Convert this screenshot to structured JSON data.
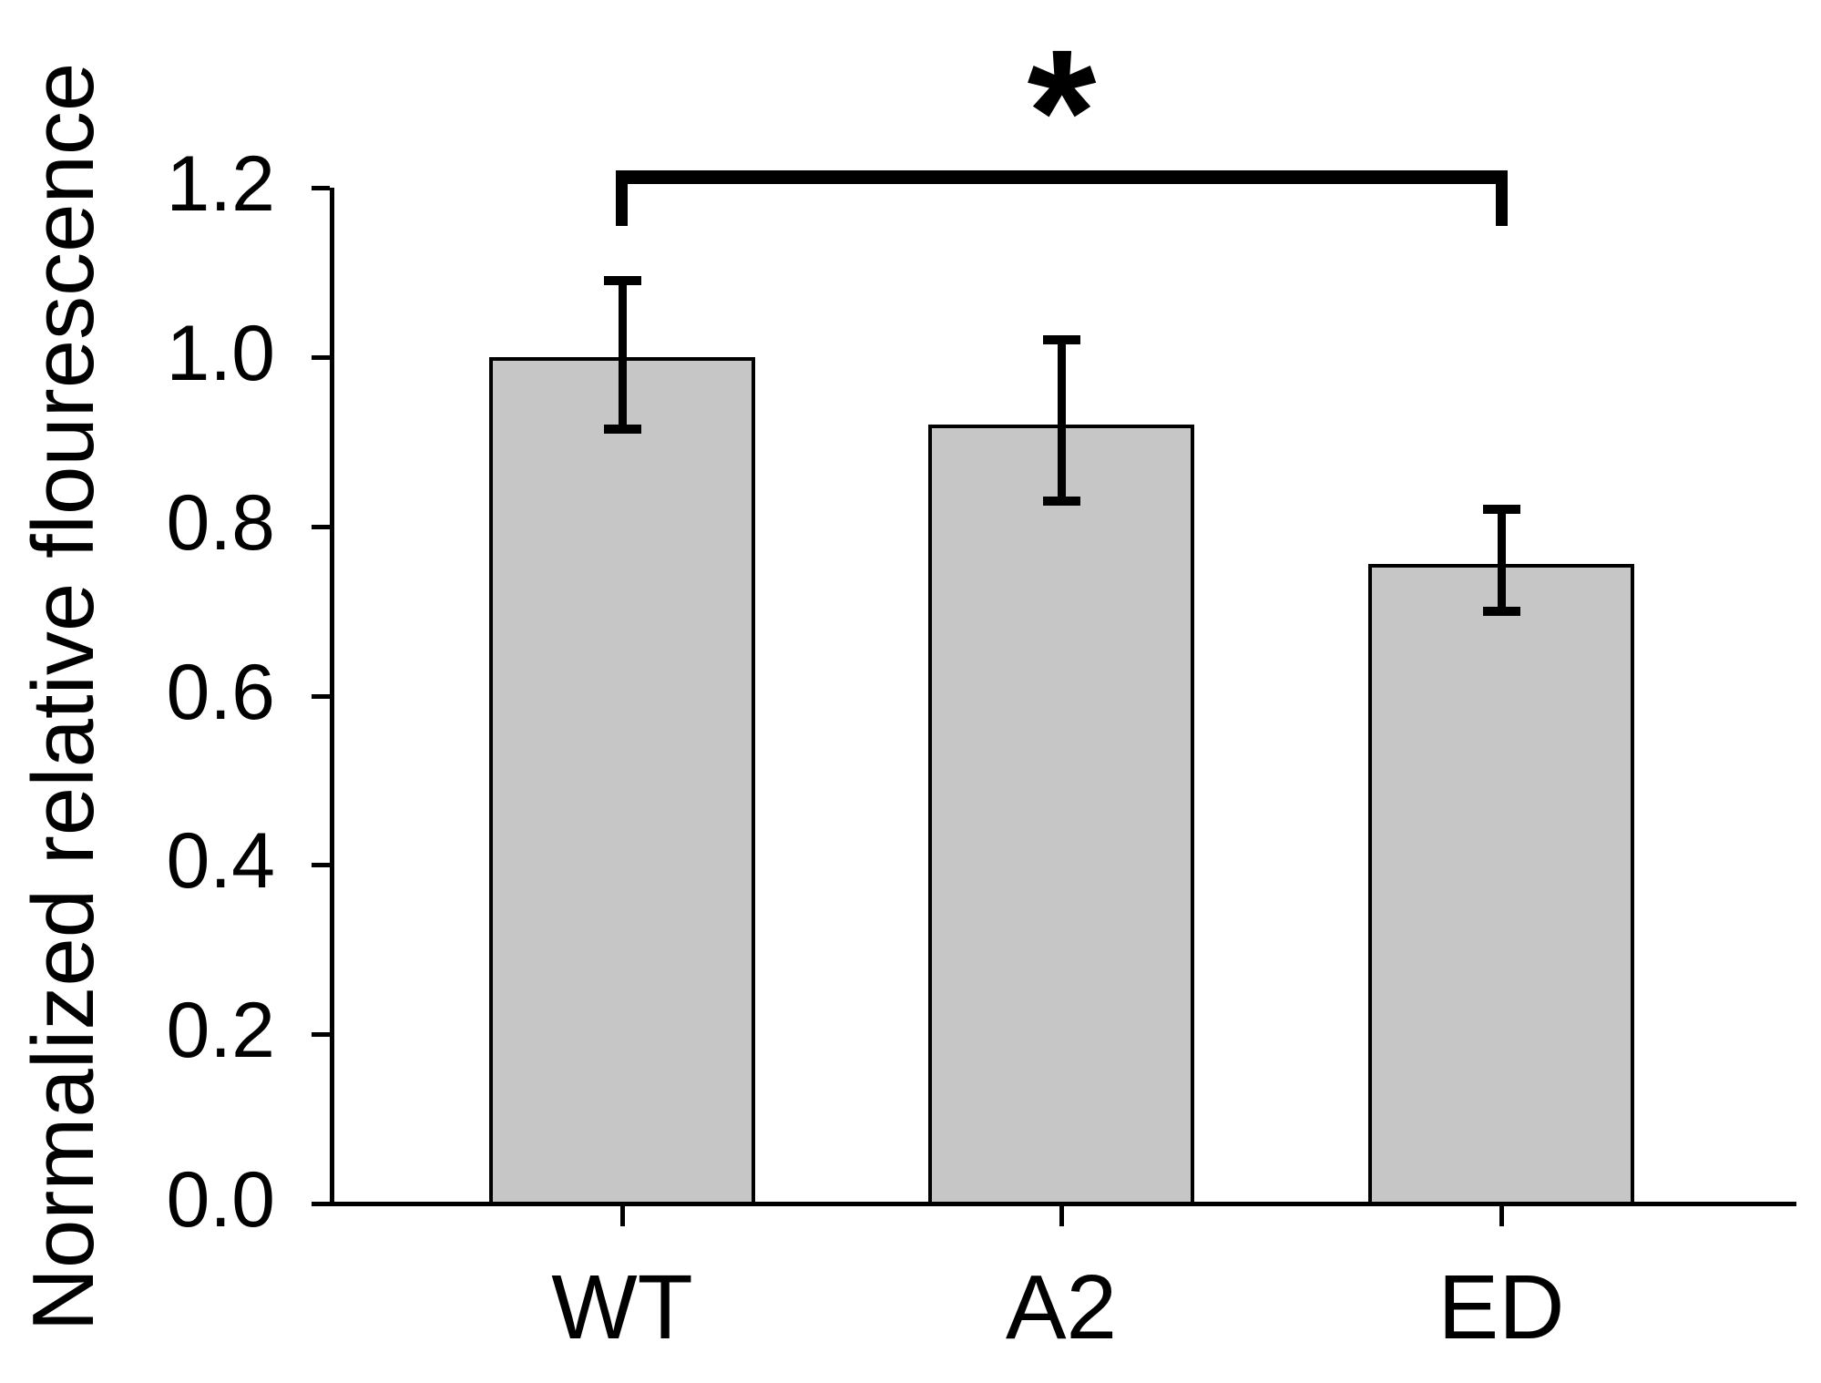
{
  "chart_data": {
    "type": "bar",
    "title": "",
    "xlabel": "",
    "ylabel": "Normalized relative flourescence",
    "categories": [
      "WT",
      "A2",
      "ED"
    ],
    "values": [
      1.0,
      0.92,
      0.755
    ],
    "error_upper": [
      1.09,
      1.02,
      0.82
    ],
    "error_lower": [
      0.915,
      0.83,
      0.7
    ],
    "ylim": [
      0.0,
      1.2
    ],
    "yticks": [
      0.0,
      0.2,
      0.4,
      0.6,
      0.8,
      1.0,
      1.2
    ],
    "ytick_labels": [
      "0.0",
      "0.2",
      "0.4",
      "0.6",
      "0.8",
      "1.0",
      "1.2"
    ],
    "grid": false,
    "legend": null,
    "bar_color": "#c6c6c6",
    "bar_border_color": "#000000",
    "axis_color": "#000000",
    "significance": {
      "label": "*",
      "from_category": "WT",
      "to_category": "ED",
      "bracket_y": 1.22
    }
  }
}
